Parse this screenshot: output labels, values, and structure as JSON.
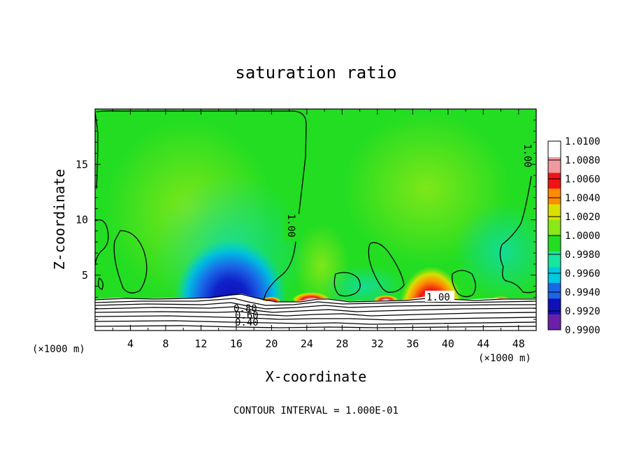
{
  "chart_data": {
    "type": "heatmap",
    "title": "saturation ratio",
    "xlabel": "X-coordinate",
    "ylabel": "Z-coordinate",
    "x_unit": "(×1000 m)",
    "y_unit": "(×1000 m)",
    "xlim": [
      0,
      50
    ],
    "ylim": [
      0,
      20
    ],
    "x_ticks": [
      4,
      8,
      12,
      16,
      20,
      24,
      28,
      32,
      36,
      40,
      44,
      48
    ],
    "y_ticks": [
      5,
      10,
      15
    ],
    "colorbar": {
      "levels": [
        "0.9900",
        "0.9920",
        "0.9940",
        "0.9960",
        "0.9980",
        "1.0000",
        "1.0020",
        "1.0040",
        "1.0060",
        "1.0080",
        "1.0100"
      ],
      "colors": [
        "#6a1fa8",
        "#1010b8",
        "#1a66e8",
        "#00c8e0",
        "#16e6a0",
        "#22dd22",
        "#88e818",
        "#d8e000",
        "#ff8c00",
        "#f01414",
        "#f09aa0",
        "#ffffff"
      ]
    },
    "contour_labels": [
      "1.00",
      "1.00",
      "1.00",
      "0.80",
      "0.60",
      "0.40"
    ],
    "contour_interval": "CONTOUR INTERVAL = 1.000E-01"
  }
}
